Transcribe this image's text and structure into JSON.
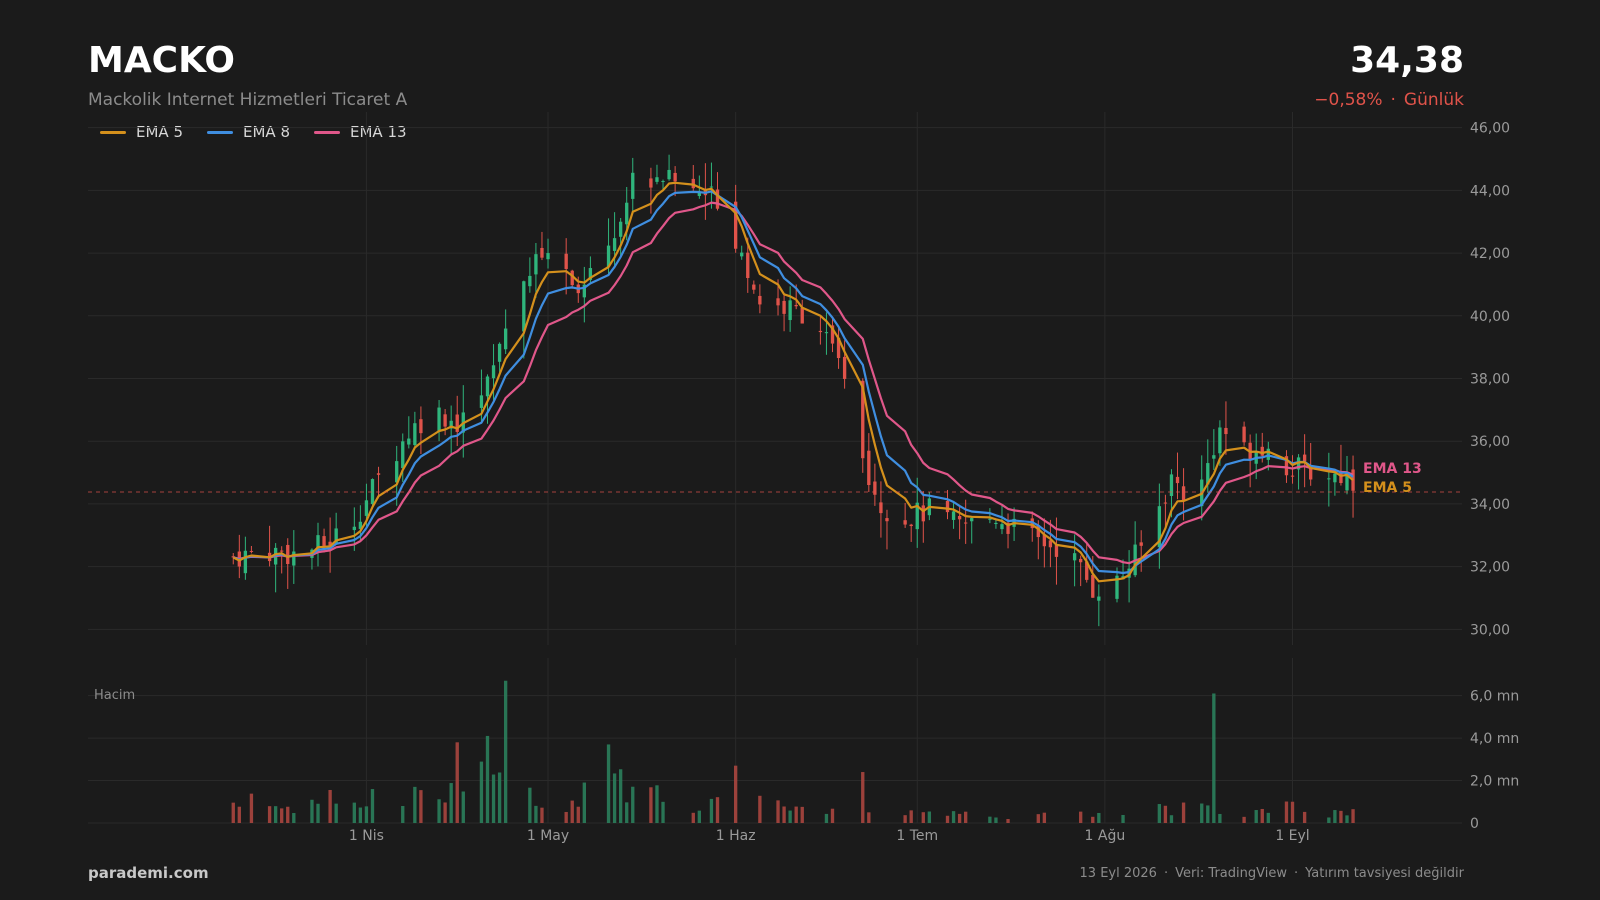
{
  "header": {
    "ticker": "MACKO",
    "company": "Mackolik Internet Hizmetleri Ticaret A",
    "price": "34,38",
    "change": "−0,58%",
    "period": "Günlük"
  },
  "footer": {
    "brand": "parademi.com",
    "date": "13 Eyl 2026",
    "source": "Veri: TradingView",
    "disclaimer": "Yatırım tavsiyesi değildir"
  },
  "colors": {
    "background": "#1b1b1b",
    "up": "#2fb57c",
    "down": "#e0534a",
    "ema5": "#d4901c",
    "ema8": "#3f8ee0",
    "ema13": "#e0578a"
  },
  "chart_data": {
    "type": "candlestick",
    "price_axis": {
      "ylim": [
        29.5,
        46.5
      ],
      "ticks": [
        30,
        32,
        34,
        36,
        38,
        40,
        42,
        44,
        46
      ],
      "tick_labels": [
        "30,00",
        "32,00",
        "34,00",
        "36,00",
        "38,00",
        "40,00",
        "42,00",
        "44,00",
        "46,00"
      ],
      "side": "right"
    },
    "volume_panel": {
      "title": "Hacim",
      "unit": "mn",
      "ylim": [
        0,
        7.3
      ],
      "ticks": [
        0,
        2,
        4,
        6
      ],
      "tick_labels": [
        "0",
        "2,0 mn",
        "4,0 mn",
        "6,0 mn"
      ]
    },
    "x_axis": {
      "ticks": [
        "2026-04-01",
        "2026-05-01",
        "2026-06-01",
        "2026-07-01",
        "2026-08-01",
        "2026-09-01"
      ],
      "tick_labels": [
        "1 Nis",
        "1 May",
        "1 Haz",
        "1 Tem",
        "1 Ağu",
        "1 Eyl"
      ]
    },
    "last_price_line": 34.38,
    "legend": {
      "position": "top-left",
      "entries": [
        "EMA 5",
        "EMA 8",
        "EMA 13"
      ]
    },
    "end_labels": [
      "EMA 13",
      "EMA 5"
    ],
    "grid": true,
    "series_anchors": {
      "close": [
        [
          "2026-03-10",
          32.3
        ],
        [
          "2026-03-15",
          32.5
        ],
        [
          "2026-03-20",
          32.4
        ],
        [
          "2026-03-25",
          32.7
        ],
        [
          "2026-03-30",
          33.5
        ],
        [
          "2026-04-03",
          34.8
        ],
        [
          "2026-04-08",
          36.3
        ],
        [
          "2026-04-12",
          37.0
        ],
        [
          "2026-04-16",
          36.6
        ],
        [
          "2026-04-20",
          37.3
        ],
        [
          "2026-04-23",
          38.8
        ],
        [
          "2026-04-26",
          40.8
        ],
        [
          "2026-05-01",
          42.2
        ],
        [
          "2026-05-04",
          41.3
        ],
        [
          "2026-05-07",
          41.0
        ],
        [
          "2026-05-10",
          41.5
        ],
        [
          "2026-05-15",
          44.3
        ],
        [
          "2026-05-20",
          44.5
        ],
        [
          "2026-05-25",
          44.0
        ],
        [
          "2026-05-29",
          43.8
        ],
        [
          "2026-06-01",
          42.3
        ],
        [
          "2026-06-05",
          40.5
        ],
        [
          "2026-06-10",
          40.2
        ],
        [
          "2026-06-14",
          40.0
        ],
        [
          "2026-06-18",
          38.5
        ],
        [
          "2026-06-22",
          35.5
        ],
        [
          "2026-06-25",
          34.0
        ],
        [
          "2026-06-28",
          33.5
        ],
        [
          "2026-07-03",
          33.8
        ],
        [
          "2026-07-08",
          33.3
        ],
        [
          "2026-07-14",
          33.6
        ],
        [
          "2026-07-20",
          32.9
        ],
        [
          "2026-07-26",
          32.5
        ],
        [
          "2026-07-30",
          31.3
        ],
        [
          "2026-08-03",
          31.5
        ],
        [
          "2026-08-07",
          32.6
        ],
        [
          "2026-08-12",
          34.8
        ],
        [
          "2026-08-16",
          34.0
        ],
        [
          "2026-08-20",
          36.5
        ],
        [
          "2026-08-24",
          35.7
        ],
        [
          "2026-08-27",
          35.9
        ],
        [
          "2026-08-31",
          35.2
        ],
        [
          "2026-09-04",
          35.0
        ],
        [
          "2026-09-10",
          34.9
        ],
        [
          "2026-09-13",
          34.38
        ]
      ],
      "volume_mn": [
        [
          "2026-03-10",
          1.2
        ],
        [
          "2026-03-20",
          0.9
        ],
        [
          "2026-03-30",
          1.5
        ],
        [
          "2026-04-06",
          1.6
        ],
        [
          "2026-04-12",
          2.5
        ],
        [
          "2026-04-18",
          1.8
        ],
        [
          "2026-04-23",
          2.9
        ],
        [
          "2026-04-26",
          1.8
        ],
        [
          "2026-05-01",
          1.2
        ],
        [
          "2026-05-05",
          1.0
        ],
        [
          "2026-05-10",
          2.3
        ],
        [
          "2026-05-15",
          1.8
        ],
        [
          "2026-05-20",
          1.4
        ],
        [
          "2026-05-25",
          1.2
        ],
        [
          "2026-06-01",
          1.3
        ],
        [
          "2026-06-08",
          1.0
        ],
        [
          "2026-06-15",
          0.9
        ],
        [
          "2026-06-21",
          0.9
        ],
        [
          "2026-06-28",
          0.6
        ],
        [
          "2026-07-06",
          0.5
        ],
        [
          "2026-07-14",
          0.4
        ],
        [
          "2026-07-22",
          0.4
        ],
        [
          "2026-07-30",
          0.5
        ],
        [
          "2026-08-07",
          0.7
        ],
        [
          "2026-08-13",
          0.9
        ],
        [
          "2026-08-18",
          0.8
        ],
        [
          "2026-08-24",
          0.7
        ],
        [
          "2026-08-31",
          0.8
        ],
        [
          "2026-09-13",
          0.5
        ]
      ],
      "volume_spikes": [
        [
          "2026-04-24",
          6.7
        ],
        [
          "2026-08-19",
          6.1
        ],
        [
          "2026-04-21",
          4.1
        ],
        [
          "2026-04-16",
          3.8
        ],
        [
          "2026-04-25",
          3.4
        ],
        [
          "2026-05-11",
          3.7
        ],
        [
          "2026-04-18",
          3.8
        ],
        [
          "2026-06-01",
          2.7
        ],
        [
          "2026-06-22",
          2.4
        ]
      ]
    }
  }
}
